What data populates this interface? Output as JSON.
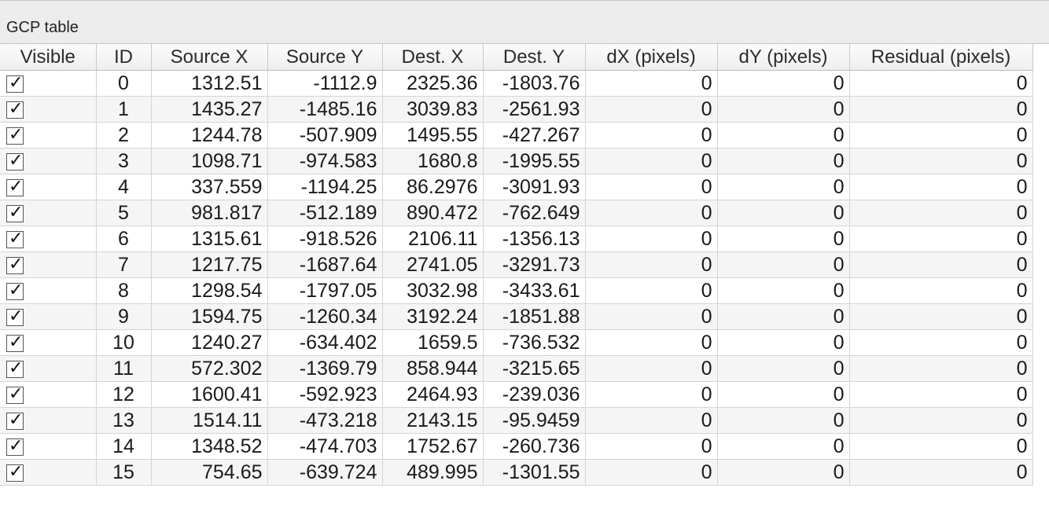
{
  "panel": {
    "title": "GCP table"
  },
  "columns": [
    "Visible",
    "ID",
    "Source X",
    "Source Y",
    "Dest. X",
    "Dest. Y",
    "dX (pixels)",
    "dY (pixels)",
    "Residual (pixels)"
  ],
  "check_glyph": "✓",
  "rows": [
    {
      "visible": true,
      "id": "0",
      "src_x": "1312.51",
      "src_y": "-1112.9",
      "dst_x": "2325.36",
      "dst_y": "-1803.76",
      "dx": "0",
      "dy": "0",
      "res": "0"
    },
    {
      "visible": true,
      "id": "1",
      "src_x": "1435.27",
      "src_y": "-1485.16",
      "dst_x": "3039.83",
      "dst_y": "-2561.93",
      "dx": "0",
      "dy": "0",
      "res": "0"
    },
    {
      "visible": true,
      "id": "2",
      "src_x": "1244.78",
      "src_y": "-507.909",
      "dst_x": "1495.55",
      "dst_y": "-427.267",
      "dx": "0",
      "dy": "0",
      "res": "0"
    },
    {
      "visible": true,
      "id": "3",
      "src_x": "1098.71",
      "src_y": "-974.583",
      "dst_x": "1680.8",
      "dst_y": "-1995.55",
      "dx": "0",
      "dy": "0",
      "res": "0"
    },
    {
      "visible": true,
      "id": "4",
      "src_x": "337.559",
      "src_y": "-1194.25",
      "dst_x": "86.2976",
      "dst_y": "-3091.93",
      "dx": "0",
      "dy": "0",
      "res": "0"
    },
    {
      "visible": true,
      "id": "5",
      "src_x": "981.817",
      "src_y": "-512.189",
      "dst_x": "890.472",
      "dst_y": "-762.649",
      "dx": "0",
      "dy": "0",
      "res": "0"
    },
    {
      "visible": true,
      "id": "6",
      "src_x": "1315.61",
      "src_y": "-918.526",
      "dst_x": "2106.11",
      "dst_y": "-1356.13",
      "dx": "0",
      "dy": "0",
      "res": "0"
    },
    {
      "visible": true,
      "id": "7",
      "src_x": "1217.75",
      "src_y": "-1687.64",
      "dst_x": "2741.05",
      "dst_y": "-3291.73",
      "dx": "0",
      "dy": "0",
      "res": "0"
    },
    {
      "visible": true,
      "id": "8",
      "src_x": "1298.54",
      "src_y": "-1797.05",
      "dst_x": "3032.98",
      "dst_y": "-3433.61",
      "dx": "0",
      "dy": "0",
      "res": "0"
    },
    {
      "visible": true,
      "id": "9",
      "src_x": "1594.75",
      "src_y": "-1260.34",
      "dst_x": "3192.24",
      "dst_y": "-1851.88",
      "dx": "0",
      "dy": "0",
      "res": "0"
    },
    {
      "visible": true,
      "id": "10",
      "src_x": "1240.27",
      "src_y": "-634.402",
      "dst_x": "1659.5",
      "dst_y": "-736.532",
      "dx": "0",
      "dy": "0",
      "res": "0"
    },
    {
      "visible": true,
      "id": "11",
      "src_x": "572.302",
      "src_y": "-1369.79",
      "dst_x": "858.944",
      "dst_y": "-3215.65",
      "dx": "0",
      "dy": "0",
      "res": "0"
    },
    {
      "visible": true,
      "id": "12",
      "src_x": "1600.41",
      "src_y": "-592.923",
      "dst_x": "2464.93",
      "dst_y": "-239.036",
      "dx": "0",
      "dy": "0",
      "res": "0"
    },
    {
      "visible": true,
      "id": "13",
      "src_x": "1514.11",
      "src_y": "-473.218",
      "dst_x": "2143.15",
      "dst_y": "-95.9459",
      "dx": "0",
      "dy": "0",
      "res": "0"
    },
    {
      "visible": true,
      "id": "14",
      "src_x": "1348.52",
      "src_y": "-474.703",
      "dst_x": "1752.67",
      "dst_y": "-260.736",
      "dx": "0",
      "dy": "0",
      "res": "0"
    },
    {
      "visible": true,
      "id": "15",
      "src_x": "754.65",
      "src_y": "-639.724",
      "dst_x": "489.995",
      "dst_y": "-1301.55",
      "dx": "0",
      "dy": "0",
      "res": "0"
    }
  ]
}
